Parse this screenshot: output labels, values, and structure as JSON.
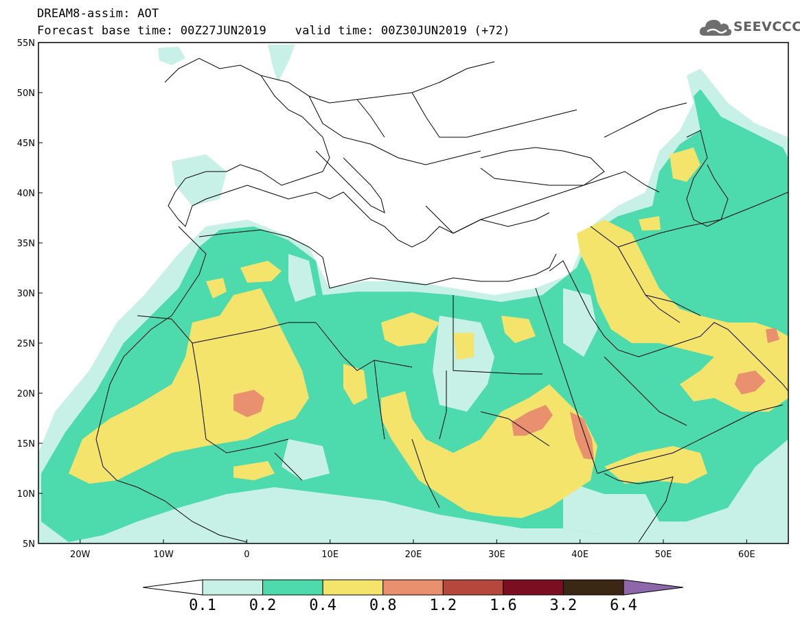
{
  "header": {
    "line1": "DREAM8-assim: AOT",
    "line2": "Forecast base time: 00Z27JUN2019    valid time: 00Z30JUN2019 (+72)"
  },
  "logo": {
    "text": "SEEVCCC",
    "icon": "cloud-icon"
  },
  "map": {
    "lon_range": [
      -25,
      65
    ],
    "lat_range": [
      5,
      55
    ],
    "lat_ticks": [
      "5N",
      "10N",
      "15N",
      "20N",
      "25N",
      "30N",
      "35N",
      "40N",
      "45N",
      "50N",
      "55N"
    ],
    "lon_ticks": [
      "20W",
      "10W",
      "0",
      "10E",
      "20E",
      "30E",
      "40E",
      "50E",
      "60E"
    ]
  },
  "colorbar": {
    "colors": [
      "#ffffff",
      "#c7f0e6",
      "#4ddbae",
      "#f4e46c",
      "#e9906e",
      "#b5473d",
      "#7b0e21",
      "#3a2814",
      "#8e66a9"
    ],
    "labels": [
      "0.1",
      "0.2",
      "0.4",
      "0.8",
      "1.2",
      "1.6",
      "3.2",
      "6.4"
    ]
  }
}
